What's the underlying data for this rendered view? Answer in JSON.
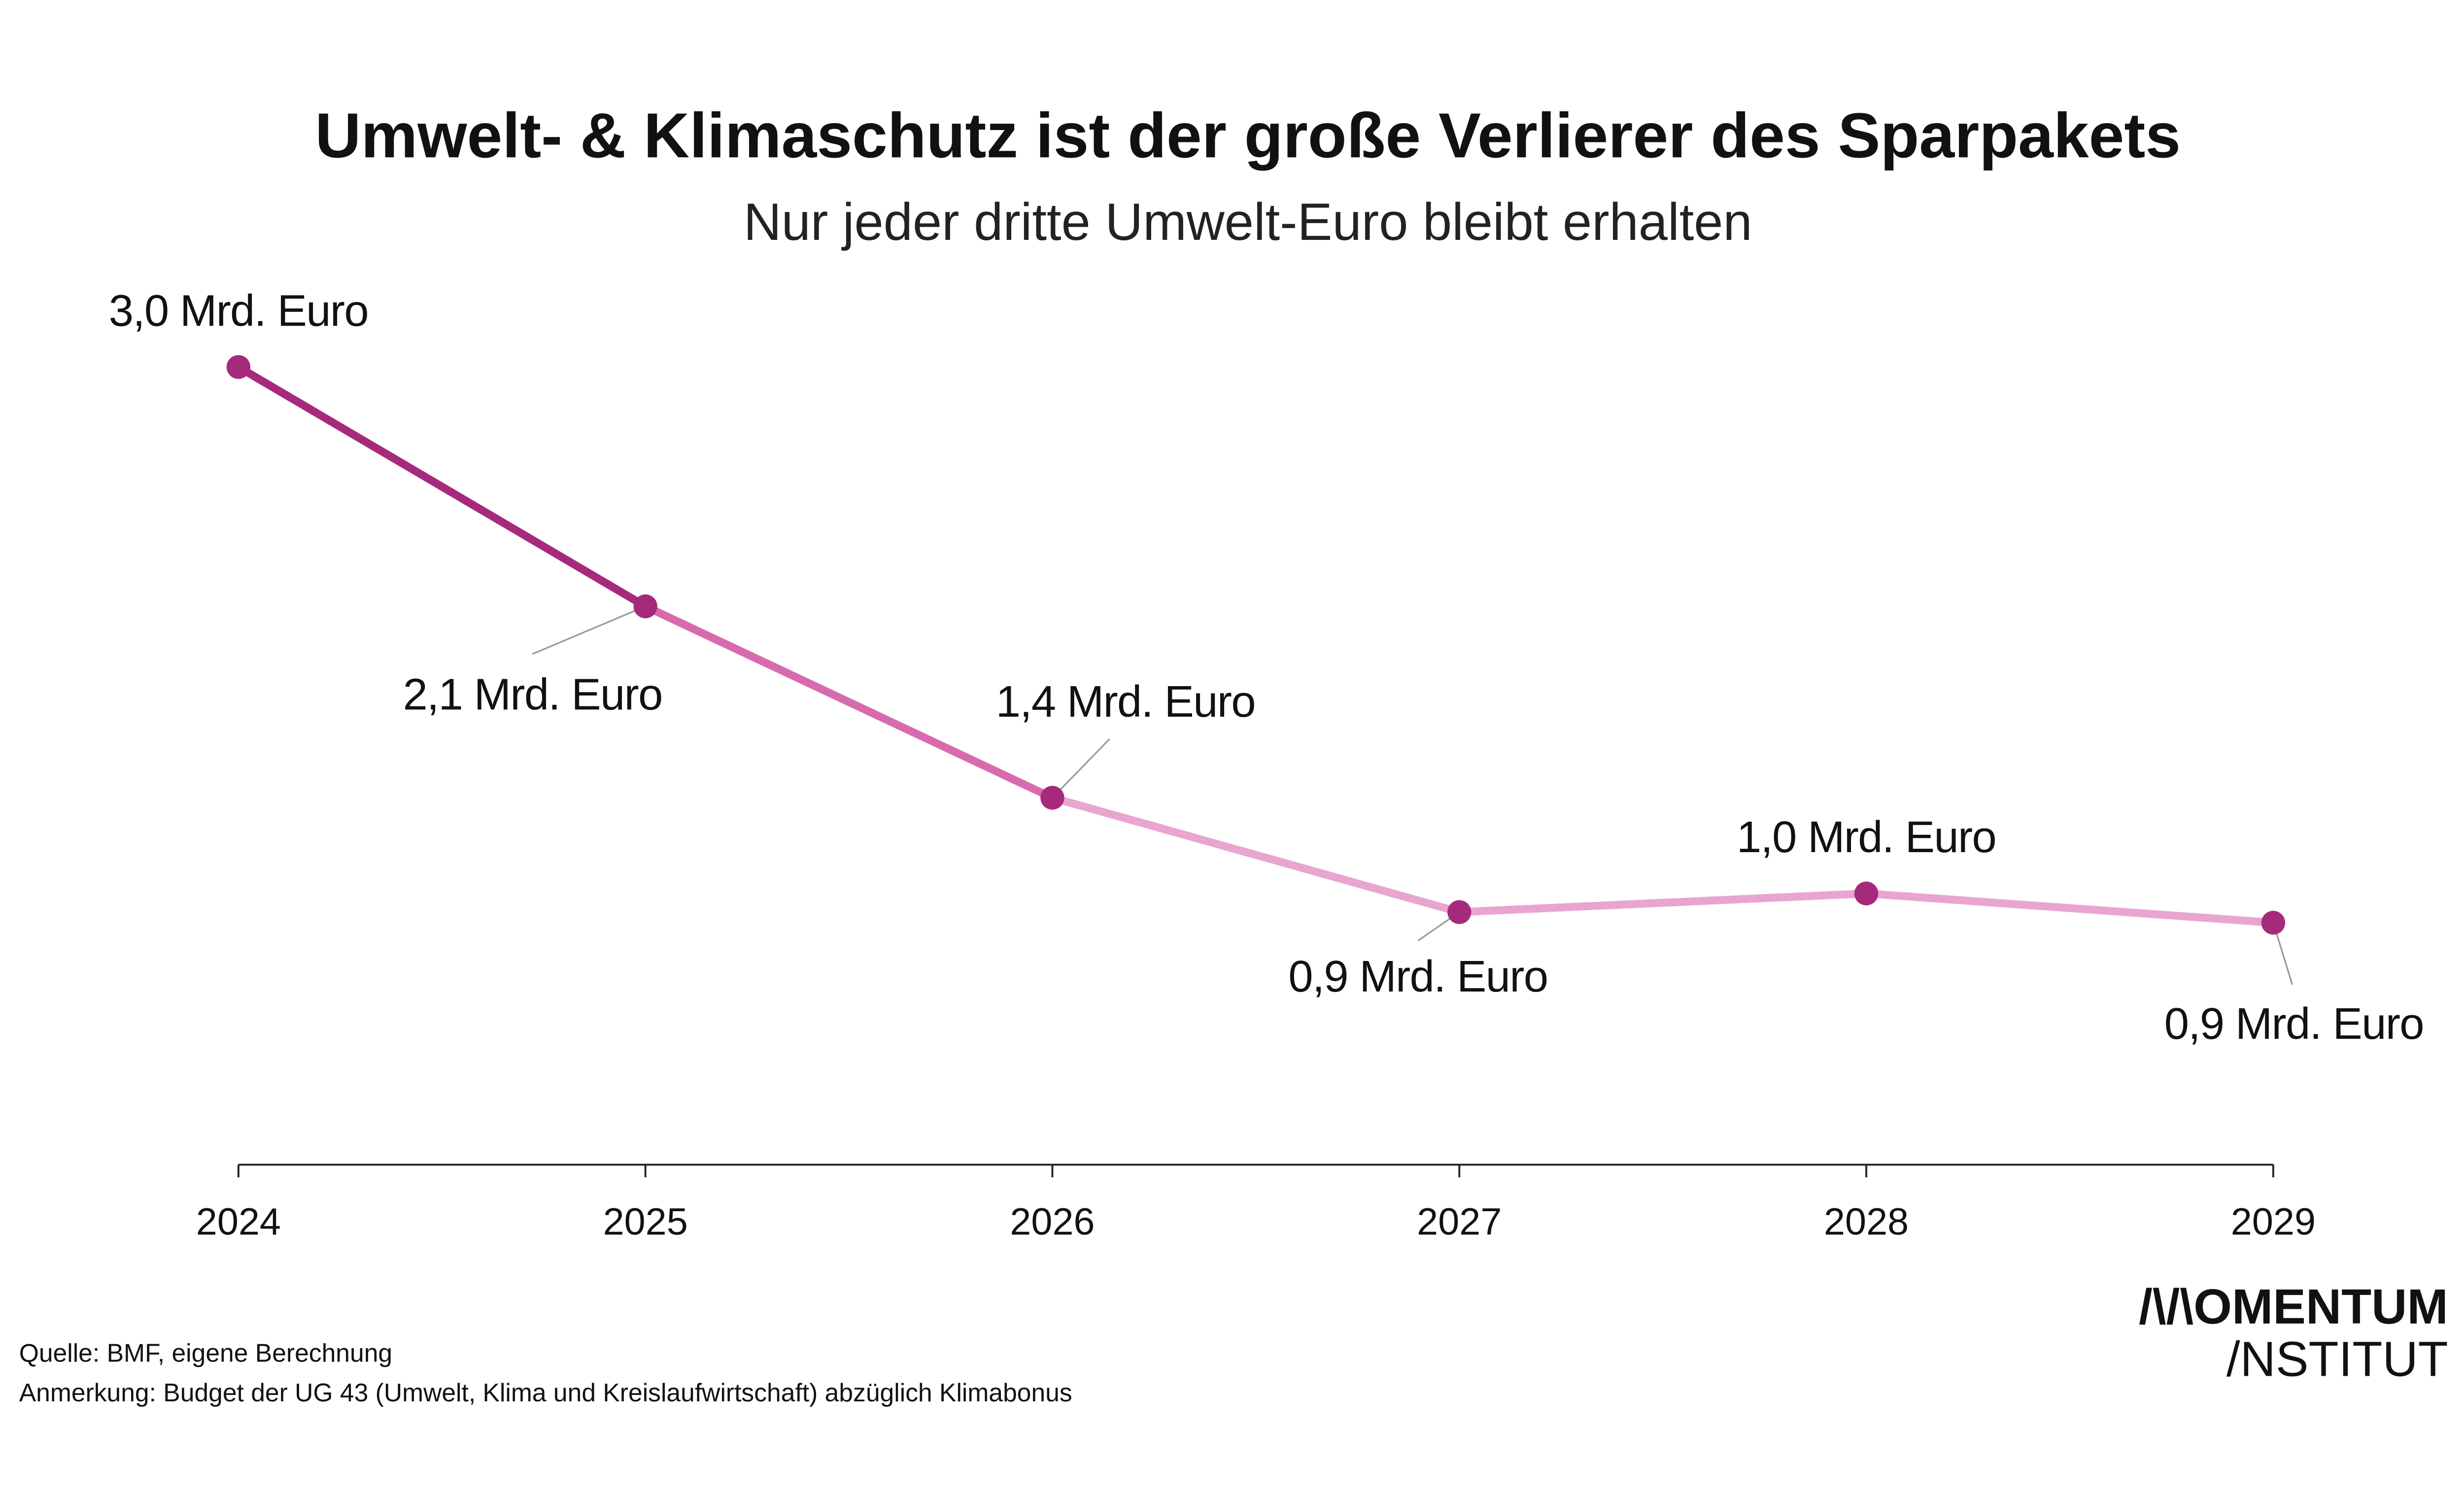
{
  "chart_data": {
    "type": "line",
    "title": "Umwelt- & Klimaschutz ist der große Verlierer des Sparpakets",
    "subtitle": "Nur jeder dritte Umwelt-Euro bleibt erhalten",
    "categories": [
      "2024",
      "2025",
      "2026",
      "2027",
      "2028",
      "2029"
    ],
    "values": [
      3.0,
      2.1,
      1.38,
      0.95,
      1.02,
      0.91
    ],
    "data_labels": [
      "3,0 Mrd. Euro",
      "2,1 Mrd. Euro",
      "1,4 Mrd. Euro",
      "0,9 Mrd. Euro",
      "1,0 Mrd. Euro",
      "0,9 Mrd. Euro"
    ],
    "unit": "Mrd. Euro",
    "ylim": [
      0,
      3.0
    ],
    "grid": false,
    "y_axis_visible": false,
    "segment_colors": [
      "#A62A7C",
      "#D86BAE",
      "#E8A5CF",
      "#E8A5CF",
      "#E8A5CF"
    ],
    "marker_color": "#A62A7C",
    "leader_color": "#9A9A9A"
  },
  "footer": {
    "source": "Quelle: BMF, eigene Berechnung",
    "note": "Anmerkung: Budget der UG 43 (Umwelt, Klima und Kreislaufwirtschaft) abzüglich Klimabonus"
  },
  "logo": {
    "line1": "/\\/\\OMENTUM",
    "line2": "/NSTITUT"
  }
}
